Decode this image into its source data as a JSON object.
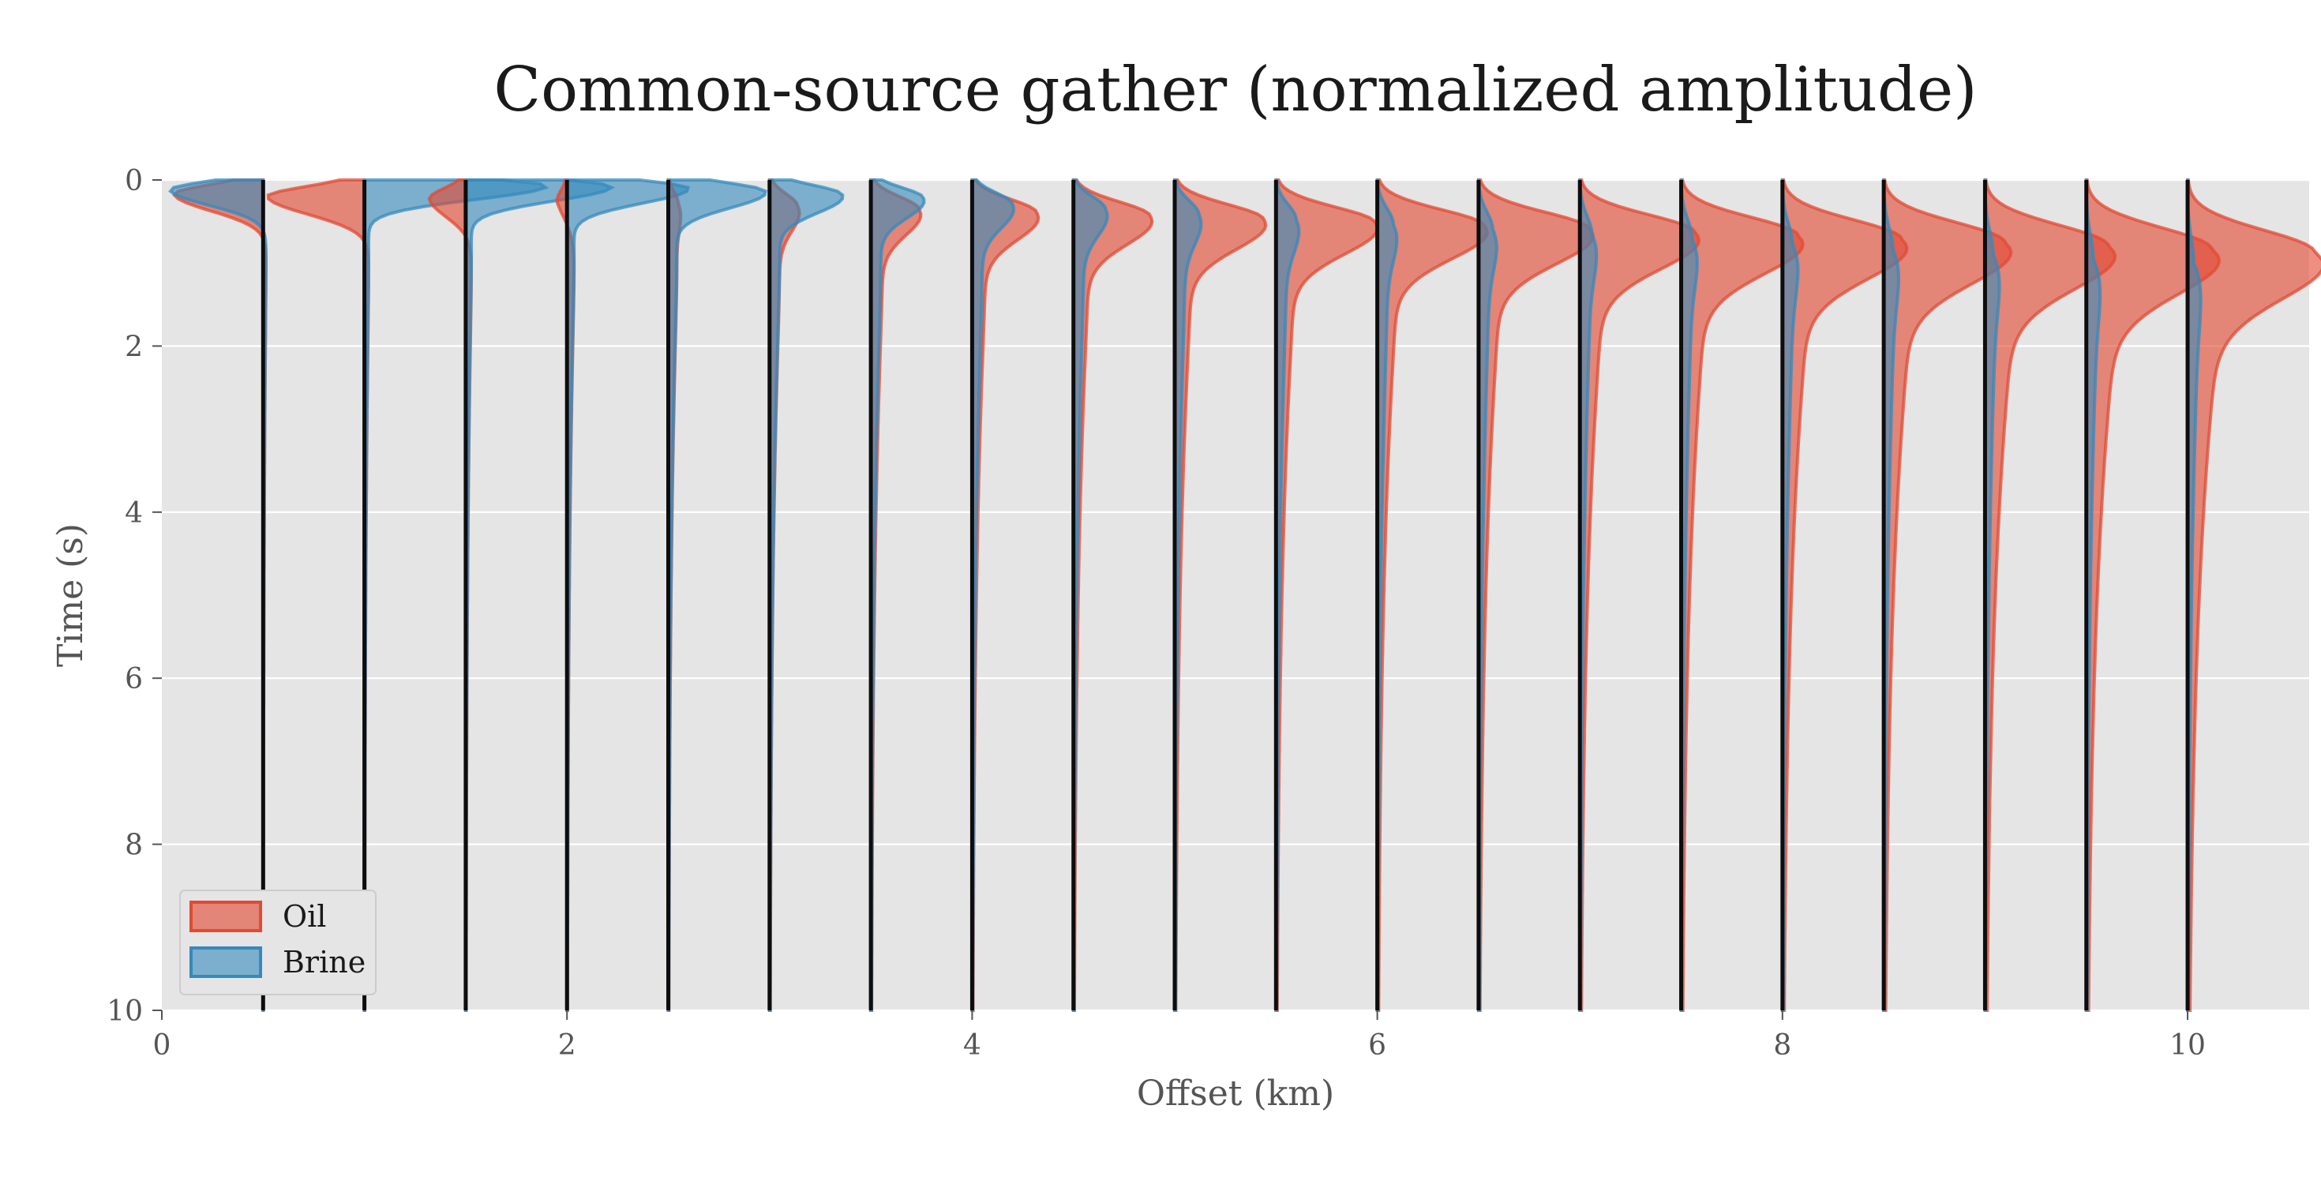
{
  "chart_data": {
    "type": "area",
    "title": "Common-source gather (normalized amplitude)",
    "xlabel": "Offset (km)",
    "ylabel": "Time (s)",
    "xlim": [
      0,
      10.6
    ],
    "ylim": [
      10,
      0
    ],
    "xticks": [
      0,
      2,
      4,
      6,
      8,
      10
    ],
    "yticks": [
      0,
      2,
      4,
      6,
      8,
      10
    ],
    "grid": true,
    "legend_position": "lower-left",
    "trace_offsets_km": [
      0.5,
      1.0,
      1.5,
      2.0,
      2.5,
      3.0,
      3.5,
      4.0,
      4.5,
      5.0,
      5.5,
      6.0,
      6.5,
      7.0,
      7.5,
      8.0,
      8.5,
      9.0,
      9.5,
      10.0
    ],
    "series": [
      {
        "name": "Oil",
        "color": "#E24A33",
        "peak_time_s": [
          0.17,
          0.2,
          0.23,
          0.26,
          0.29,
          0.32,
          0.36,
          0.4,
          0.44,
          0.48,
          0.52,
          0.56,
          0.6,
          0.64,
          0.68,
          0.72,
          0.76,
          0.8,
          0.84,
          0.88
        ],
        "peak_amplitude_km": [
          -0.44,
          -0.48,
          -0.18,
          -0.05,
          0.05,
          0.14,
          0.24,
          0.32,
          0.38,
          0.44,
          0.49,
          0.53,
          0.55,
          0.57,
          0.58,
          0.59,
          0.6,
          0.61,
          0.62,
          0.63
        ],
        "tail_amplitude_km": [
          0.02,
          0.03,
          0.04,
          0.05,
          0.06,
          0.07,
          0.08,
          0.09,
          0.1,
          0.11,
          0.12,
          0.13,
          0.14,
          0.15,
          0.16,
          0.17,
          0.18,
          0.19,
          0.2,
          0.21
        ]
      },
      {
        "name": "Brine",
        "color": "#348ABD",
        "peak_time_s": [
          0.12,
          0.07,
          0.08,
          0.1,
          0.14,
          0.18,
          0.22,
          0.3,
          0.36,
          0.42,
          0.48,
          0.54,
          0.6,
          0.66,
          0.72,
          0.78,
          0.84,
          0.9,
          0.96,
          1.0
        ],
        "peak_amplitude_km": [
          -0.46,
          0.9,
          0.72,
          0.6,
          0.48,
          0.36,
          0.26,
          0.2,
          0.16,
          0.12,
          0.1,
          0.08,
          0.07,
          0.06,
          0.055,
          0.05,
          0.045,
          0.04,
          0.035,
          0.03
        ],
        "tail_amplitude_km": [
          0.02,
          0.03,
          0.04,
          0.05,
          0.06,
          0.07,
          0.07,
          0.07,
          0.07,
          0.07,
          0.07,
          0.07,
          0.07,
          0.07,
          0.07,
          0.07,
          0.07,
          0.07,
          0.07,
          0.07
        ]
      }
    ]
  }
}
